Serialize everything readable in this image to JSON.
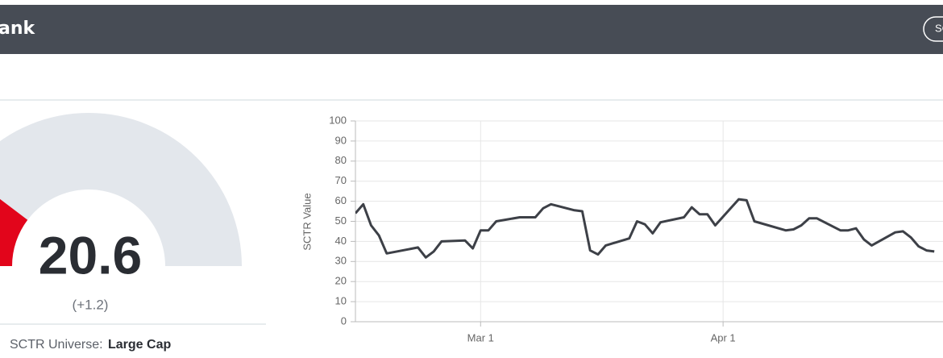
{
  "header": {
    "title": "ank",
    "button": "SC"
  },
  "gauge": {
    "value": 20.6,
    "lim": [
      0,
      100
    ],
    "change": "(+1.2)",
    "universe_label": "SCTR Universe:",
    "universe": "Large Cap",
    "color": "#e2051b",
    "track_color": "#e3e7ec"
  },
  "chart_data": {
    "type": "line",
    "y_label": "SCTR Value",
    "x": [
      "Feb 13",
      "Feb 14",
      "Feb 15",
      "Feb 16",
      "Feb 17",
      "Feb 21",
      "Feb 22",
      "Feb 23",
      "Feb 24",
      "Feb 27",
      "Feb 28",
      "Mar 1",
      "Mar 2",
      "Mar 3",
      "Mar 6",
      "Mar 8",
      "Mar 9",
      "Mar 10",
      "Mar 13",
      "Mar 14",
      "Mar 15",
      "Mar 16",
      "Mar 17",
      "Mar 20",
      "Mar 21",
      "Mar 22",
      "Mar 23",
      "Mar 24",
      "Mar 27",
      "Mar 28",
      "Mar 29",
      "Mar 30",
      "Mar 31",
      "Apr 3",
      "Apr 4",
      "Apr 5",
      "Apr 9",
      "Apr 10",
      "Apr 11",
      "Apr 12",
      "Apr 13",
      "Apr 16",
      "Apr 17",
      "Apr 18",
      "Apr 19",
      "Apr 20",
      "Apr 23",
      "Apr 24",
      "Apr 25",
      "Apr 26",
      "Apr 27",
      "Apr 28"
    ],
    "values": [
      54,
      58.5,
      48,
      43,
      34,
      37,
      32,
      35,
      40,
      40.5,
      36.5,
      45.5,
      45.5,
      50,
      52,
      52,
      56.5,
      58.5,
      55.5,
      55,
      35.5,
      33.5,
      38,
      41.5,
      50,
      48.5,
      44,
      49.5,
      52,
      57,
      53.5,
      53.5,
      48,
      61,
      60.5,
      50,
      45.5,
      46,
      48,
      51.5,
      51.5,
      45.5,
      45.5,
      46.5,
      41,
      38,
      44.5,
      45,
      42,
      37.5,
      35.5,
      35
    ],
    "color": "#3d4047",
    "xlim": [
      "Feb 13",
      "May 2"
    ],
    "xticks": [
      "Mar 1",
      "Apr 1"
    ],
    "ylim": [
      0,
      100
    ],
    "yticks": [
      0,
      10,
      20,
      30,
      40,
      50,
      60,
      70,
      80,
      90,
      100
    ],
    "grid": true
  }
}
